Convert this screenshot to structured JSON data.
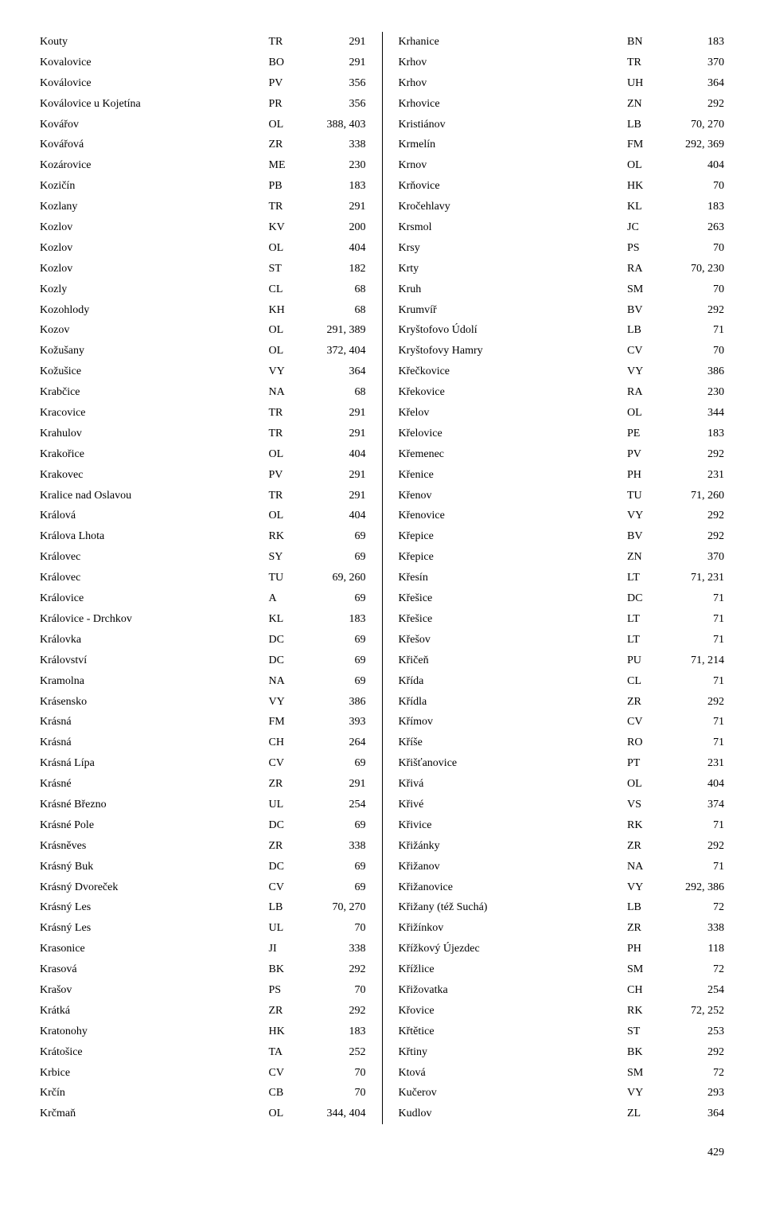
{
  "page_number": "429",
  "columns": {
    "left": [
      {
        "name": "Kouty",
        "code": "TR",
        "page": "291"
      },
      {
        "name": "Kovalovice",
        "code": "BO",
        "page": "291"
      },
      {
        "name": "Koválovice",
        "code": "PV",
        "page": "356"
      },
      {
        "name": "Koválovice u Kojetína",
        "code": "PR",
        "page": "356"
      },
      {
        "name": "Kovářov",
        "code": "OL",
        "page": "388, 403"
      },
      {
        "name": "Kovářová",
        "code": "ZR",
        "page": "338"
      },
      {
        "name": "Kozárovice",
        "code": "ME",
        "page": "230"
      },
      {
        "name": "Kozičín",
        "code": "PB",
        "page": "183"
      },
      {
        "name": "Kozlany",
        "code": "TR",
        "page": "291"
      },
      {
        "name": "Kozlov",
        "code": "KV",
        "page": "200"
      },
      {
        "name": "Kozlov",
        "code": "OL",
        "page": "404"
      },
      {
        "name": "Kozlov",
        "code": "ST",
        "page": "182"
      },
      {
        "name": "Kozly",
        "code": "CL",
        "page": "68"
      },
      {
        "name": "Kozohlody",
        "code": "KH",
        "page": "68"
      },
      {
        "name": "Kozov",
        "code": "OL",
        "page": "291, 389"
      },
      {
        "name": "Kožušany",
        "code": "OL",
        "page": "372, 404"
      },
      {
        "name": "Kožušice",
        "code": "VY",
        "page": "364"
      },
      {
        "name": "Krabčice",
        "code": "NA",
        "page": "68"
      },
      {
        "name": "Kracovice",
        "code": "TR",
        "page": "291"
      },
      {
        "name": "Krahulov",
        "code": "TR",
        "page": "291"
      },
      {
        "name": "Krakořice",
        "code": "OL",
        "page": "404"
      },
      {
        "name": "Krakovec",
        "code": "PV",
        "page": "291"
      },
      {
        "name": "Kralice nad Oslavou",
        "code": "TR",
        "page": "291"
      },
      {
        "name": "Králová",
        "code": "OL",
        "page": "404"
      },
      {
        "name": "Králova Lhota",
        "code": "RK",
        "page": "69"
      },
      {
        "name": "Královec",
        "code": "SY",
        "page": "69"
      },
      {
        "name": "Královec",
        "code": "TU",
        "page": "69, 260"
      },
      {
        "name": "Královice",
        "code": "A",
        "page": "69"
      },
      {
        "name": "Královice - Drchkov",
        "code": "KL",
        "page": "183"
      },
      {
        "name": "Královka",
        "code": "DC",
        "page": "69"
      },
      {
        "name": "Království",
        "code": "DC",
        "page": "69"
      },
      {
        "name": "Kramolna",
        "code": "NA",
        "page": "69"
      },
      {
        "name": "Krásensko",
        "code": "VY",
        "page": "386"
      },
      {
        "name": "Krásná",
        "code": "FM",
        "page": "393"
      },
      {
        "name": "Krásná",
        "code": "CH",
        "page": "264"
      },
      {
        "name": "Krásná Lípa",
        "code": "CV",
        "page": "69"
      },
      {
        "name": "Krásné",
        "code": "ZR",
        "page": "291"
      },
      {
        "name": "Krásné Březno",
        "code": "UL",
        "page": "254"
      },
      {
        "name": "Krásné Pole",
        "code": "DC",
        "page": "69"
      },
      {
        "name": "Krásněves",
        "code": "ZR",
        "page": "338"
      },
      {
        "name": "Krásný Buk",
        "code": "DC",
        "page": "69"
      },
      {
        "name": "Krásný Dvoreček",
        "code": "CV",
        "page": "69"
      },
      {
        "name": "Krásný Les",
        "code": "LB",
        "page": "70, 270"
      },
      {
        "name": "Krásný Les",
        "code": "UL",
        "page": "70"
      },
      {
        "name": "Krasonice",
        "code": "JI",
        "page": "338"
      },
      {
        "name": "Krasová",
        "code": "BK",
        "page": "292"
      },
      {
        "name": "Krašov",
        "code": "PS",
        "page": "70"
      },
      {
        "name": "Krátká",
        "code": "ZR",
        "page": "292"
      },
      {
        "name": "Kratonohy",
        "code": "HK",
        "page": "183"
      },
      {
        "name": "Krátošice",
        "code": "TA",
        "page": "252"
      },
      {
        "name": "Krbice",
        "code": "CV",
        "page": "70"
      },
      {
        "name": "Krčín",
        "code": "CB",
        "page": "70"
      },
      {
        "name": "Krčmaň",
        "code": "OL",
        "page": "344, 404"
      }
    ],
    "right": [
      {
        "name": "Krhanice",
        "code": "BN",
        "page": "183"
      },
      {
        "name": "Krhov",
        "code": "TR",
        "page": "370"
      },
      {
        "name": "Krhov",
        "code": "UH",
        "page": "364"
      },
      {
        "name": "Krhovice",
        "code": "ZN",
        "page": "292"
      },
      {
        "name": "Kristiánov",
        "code": "LB",
        "page": "70, 270"
      },
      {
        "name": "Krmelín",
        "code": "FM",
        "page": "292, 369"
      },
      {
        "name": "Krnov",
        "code": "OL",
        "page": "404"
      },
      {
        "name": "Krňovice",
        "code": "HK",
        "page": "70"
      },
      {
        "name": "Kročehlavy",
        "code": "KL",
        "page": "183"
      },
      {
        "name": "Krsmol",
        "code": "JC",
        "page": "263"
      },
      {
        "name": "Krsy",
        "code": "PS",
        "page": "70"
      },
      {
        "name": "Krty",
        "code": "RA",
        "page": "70, 230"
      },
      {
        "name": "Kruh",
        "code": "SM",
        "page": "70"
      },
      {
        "name": "Krumvíř",
        "code": "BV",
        "page": "292"
      },
      {
        "name": "Kryštofovo Údolí",
        "code": "LB",
        "page": "71"
      },
      {
        "name": "Kryštofovy Hamry",
        "code": "CV",
        "page": "70"
      },
      {
        "name": "Křečkovice",
        "code": "VY",
        "page": "386"
      },
      {
        "name": "Křekovice",
        "code": "RA",
        "page": "230"
      },
      {
        "name": "Křelov",
        "code": "OL",
        "page": "344"
      },
      {
        "name": "Křelovice",
        "code": "PE",
        "page": "183"
      },
      {
        "name": "Křemenec",
        "code": "PV",
        "page": "292"
      },
      {
        "name": "Křenice",
        "code": "PH",
        "page": "231"
      },
      {
        "name": "Křenov",
        "code": "TU",
        "page": "71, 260"
      },
      {
        "name": "Křenovice",
        "code": "VY",
        "page": "292"
      },
      {
        "name": "Křepice",
        "code": "BV",
        "page": "292"
      },
      {
        "name": "Křepice",
        "code": "ZN",
        "page": "370"
      },
      {
        "name": "Křesín",
        "code": "LT",
        "page": "71, 231"
      },
      {
        "name": "Křešice",
        "code": "DC",
        "page": "71"
      },
      {
        "name": "Křešice",
        "code": "LT",
        "page": "71"
      },
      {
        "name": "Křešov",
        "code": "LT",
        "page": "71"
      },
      {
        "name": "Křičeň",
        "code": "PU",
        "page": "71, 214"
      },
      {
        "name": "Křída",
        "code": "CL",
        "page": "71"
      },
      {
        "name": "Křídla",
        "code": "ZR",
        "page": "292"
      },
      {
        "name": "Křímov",
        "code": "CV",
        "page": "71"
      },
      {
        "name": "Kříše",
        "code": "RO",
        "page": "71"
      },
      {
        "name": "Křišťanovice",
        "code": "PT",
        "page": "231"
      },
      {
        "name": "Křivá",
        "code": "OL",
        "page": "404"
      },
      {
        "name": "Křivé",
        "code": "VS",
        "page": "374"
      },
      {
        "name": "Křivice",
        "code": "RK",
        "page": "71"
      },
      {
        "name": "Křižánky",
        "code": "ZR",
        "page": "292"
      },
      {
        "name": "Křižanov",
        "code": "NA",
        "page": "71"
      },
      {
        "name": "Křižanovice",
        "code": "VY",
        "page": "292, 386"
      },
      {
        "name": "Křižany (též Suchá)",
        "code": "LB",
        "page": "72"
      },
      {
        "name": "Křižínkov",
        "code": "ZR",
        "page": "338"
      },
      {
        "name": "Křížkový Újezdec",
        "code": "PH",
        "page": "118"
      },
      {
        "name": "Křížlice",
        "code": "SM",
        "page": "72"
      },
      {
        "name": "Křižovatka",
        "code": "CH",
        "page": "254"
      },
      {
        "name": "Křovice",
        "code": "RK",
        "page": "72, 252"
      },
      {
        "name": "Křtětice",
        "code": "ST",
        "page": "253"
      },
      {
        "name": "Křtiny",
        "code": "BK",
        "page": "292"
      },
      {
        "name": "Ktová",
        "code": "SM",
        "page": "72"
      },
      {
        "name": "Kučerov",
        "code": "VY",
        "page": "293"
      },
      {
        "name": "Kudlov",
        "code": "ZL",
        "page": "364"
      }
    ]
  }
}
